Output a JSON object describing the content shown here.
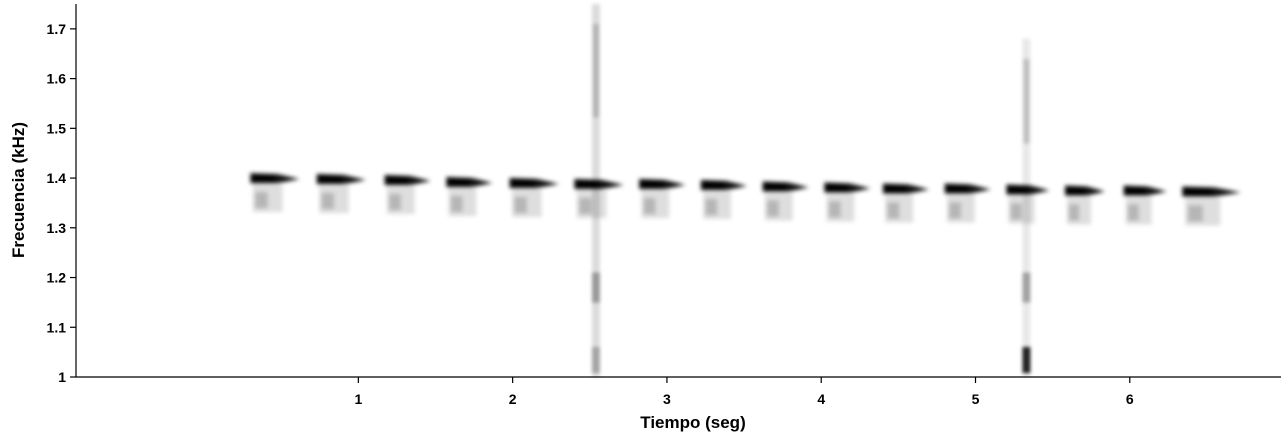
{
  "chart_data": {
    "type": "spectrogram",
    "title": "",
    "xlabel": "Tiempo (seg)",
    "ylabel": "Frecuencia (kHz)",
    "xlim": [
      -0.83,
      6.98
    ],
    "ylim": [
      1.0,
      1.75
    ],
    "x_ticks": [
      1,
      2,
      3,
      4,
      5,
      6
    ],
    "x_tick_labels": [
      "1",
      "2",
      "3",
      "4",
      "5",
      "6"
    ],
    "y_ticks": [
      1.0,
      1.1,
      1.2,
      1.3,
      1.4,
      1.5,
      1.6,
      1.7
    ],
    "y_tick_labels": [
      "1",
      "1.1",
      "1.2",
      "1.3",
      "1.4",
      "1.5",
      "1.6",
      "1.7"
    ],
    "grid": false,
    "colormap": "grayscale (white = low, black = high intensity)",
    "notes": [
      {
        "time_start": 0.3,
        "time_end": 0.62,
        "freq_khz": 1.4
      },
      {
        "time_start": 0.73,
        "time_end": 1.05,
        "freq_khz": 1.398
      },
      {
        "time_start": 1.17,
        "time_end": 1.47,
        "freq_khz": 1.396
      },
      {
        "time_start": 1.57,
        "time_end": 1.87,
        "freq_khz": 1.392
      },
      {
        "time_start": 1.98,
        "time_end": 2.3,
        "freq_khz": 1.39
      },
      {
        "time_start": 2.4,
        "time_end": 2.72,
        "freq_khz": 1.388
      },
      {
        "time_start": 2.82,
        "time_end": 3.12,
        "freq_khz": 1.388
      },
      {
        "time_start": 3.22,
        "time_end": 3.52,
        "freq_khz": 1.386
      },
      {
        "time_start": 3.62,
        "time_end": 3.92,
        "freq_khz": 1.383
      },
      {
        "time_start": 4.02,
        "time_end": 4.32,
        "freq_khz": 1.381
      },
      {
        "time_start": 4.4,
        "time_end": 4.7,
        "freq_khz": 1.379
      },
      {
        "time_start": 4.8,
        "time_end": 5.1,
        "freq_khz": 1.379
      },
      {
        "time_start": 5.2,
        "time_end": 5.48,
        "freq_khz": 1.377
      },
      {
        "time_start": 5.58,
        "time_end": 5.84,
        "freq_khz": 1.375
      },
      {
        "time_start": 5.96,
        "time_end": 6.24,
        "freq_khz": 1.375
      },
      {
        "time_start": 6.34,
        "time_end": 6.72,
        "freq_khz": 1.373
      }
    ],
    "broadband_events": [
      {
        "time": 2.54,
        "freq_range_khz": [
          1.0,
          1.75
        ]
      },
      {
        "time": 5.33,
        "freq_range_khz": [
          1.0,
          1.68
        ]
      }
    ]
  }
}
